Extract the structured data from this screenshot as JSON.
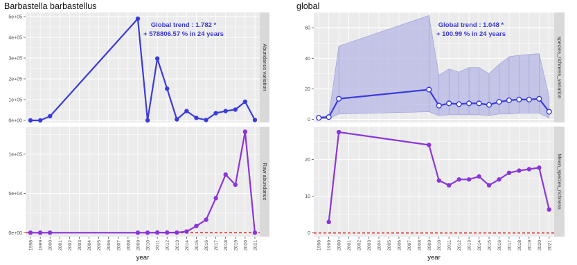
{
  "colors": {
    "panel_bg": "#ebebeb",
    "grid": "#ffffff",
    "strip_bg": "#d9d9d9",
    "abundance_line": "#3b3bdc",
    "raw_line": "#8a35d9",
    "trend_text": "#3b3bdc",
    "ribbon": "#b5b7e4",
    "ribbon_edge": "#9a9cd8",
    "zero_line": "#e03030",
    "text": "#222222",
    "tick_text": "#4d4d4d"
  },
  "chart_data": [
    {
      "type": "line",
      "figure_title": "Barbastella barbastellus",
      "strip_label": "Abundance variation",
      "annotation_line1": "Global trend : 1.782 *",
      "annotation_line2": "+ 578806.57 % in 24 years",
      "x": [
        1998,
        1999,
        2000,
        2009,
        2010,
        2011,
        2012,
        2013,
        2014,
        2015,
        2016,
        2017,
        2018,
        2019,
        2020,
        2021
      ],
      "values": [
        0,
        0,
        20000,
        490000,
        0,
        298000,
        153000,
        5000,
        45000,
        12000,
        2000,
        35000,
        45000,
        52000,
        90000,
        2000
      ],
      "xlim": [
        1997.5,
        2021.5
      ],
      "ylim": [
        -10000,
        520000
      ],
      "yticks": [
        0,
        100000,
        200000,
        300000,
        400000,
        500000
      ],
      "ytick_labels": [
        "0e+00",
        "1e+05",
        "2e+05",
        "3e+05",
        "4e+05",
        "5e+05"
      ]
    },
    {
      "type": "line",
      "strip_label": "Raw abundance",
      "x": [
        1998,
        1999,
        2000,
        2009,
        2010,
        2011,
        2012,
        2013,
        2014,
        2015,
        2016,
        2017,
        2018,
        2019,
        2020,
        2021
      ],
      "values": [
        0,
        0,
        0,
        0,
        0,
        200,
        200,
        150,
        1500,
        8500,
        16500,
        44000,
        74000,
        61000,
        128500,
        0
      ],
      "xlim": [
        1997.5,
        2021.5
      ],
      "ylim": [
        -5000,
        135000
      ],
      "reference_line": 0,
      "yticks": [
        0,
        50000,
        100000
      ],
      "ytick_labels": [
        "0e+00",
        "5e+04",
        "1e+05"
      ],
      "xlabel": "year"
    },
    {
      "type": "line",
      "figure_title": "global",
      "strip_label": "species_richness_variation",
      "annotation_line1": "Global trend : 1.048 *",
      "annotation_line2": "+ 100.99 % in 24 years",
      "x": [
        1998,
        1999,
        2000,
        2009,
        2010,
        2011,
        2012,
        2013,
        2014,
        2015,
        2016,
        2017,
        2018,
        2019,
        2020,
        2021
      ],
      "values": [
        1,
        1.5,
        13.5,
        19.5,
        9,
        10.5,
        10,
        10.5,
        10.5,
        9.5,
        11.5,
        12.5,
        13,
        13,
        13.5,
        5
      ],
      "band_upper": [
        1.5,
        2.5,
        48,
        68,
        29,
        33,
        31,
        34,
        34,
        30,
        36,
        41,
        42,
        42.5,
        43,
        15
      ],
      "band_lower": [
        0.5,
        0.5,
        3.5,
        5,
        2.5,
        3,
        3,
        3,
        3,
        2.5,
        3.5,
        3.5,
        4,
        4,
        4,
        1
      ],
      "xlim": [
        1997.5,
        2021.5
      ],
      "ylim": [
        -2,
        70
      ],
      "yticks": [
        0,
        20,
        40,
        60
      ],
      "ytick_labels": [
        "0",
        "20",
        "40",
        "60"
      ]
    },
    {
      "type": "line",
      "strip_label": "Mean_species_richness",
      "x": [
        1999,
        2000,
        2009,
        2010,
        2011,
        2012,
        2013,
        2014,
        2015,
        2016,
        2017,
        2018,
        2019,
        2020,
        2021
      ],
      "values": [
        3,
        27.5,
        24,
        14.3,
        13,
        14.6,
        14.6,
        15.4,
        13,
        14.6,
        16.4,
        17,
        17.4,
        17.8,
        6.4
      ],
      "xlim": [
        1997.5,
        2021.5
      ],
      "ylim": [
        -1,
        29
      ],
      "reference_line": 0,
      "yticks": [
        0,
        10,
        20
      ],
      "ytick_labels": [
        "0",
        "10",
        "20"
      ],
      "xlabel": "year"
    }
  ],
  "xtick_labels": [
    "1998",
    "1999",
    "2000",
    "2001",
    "2002",
    "2003",
    "2004",
    "2005",
    "2006",
    "2007",
    "2008",
    "2009",
    "2010",
    "2011",
    "2012",
    "2013",
    "2014",
    "2015",
    "2016",
    "2017",
    "2018",
    "2019",
    "2020",
    "2021"
  ]
}
